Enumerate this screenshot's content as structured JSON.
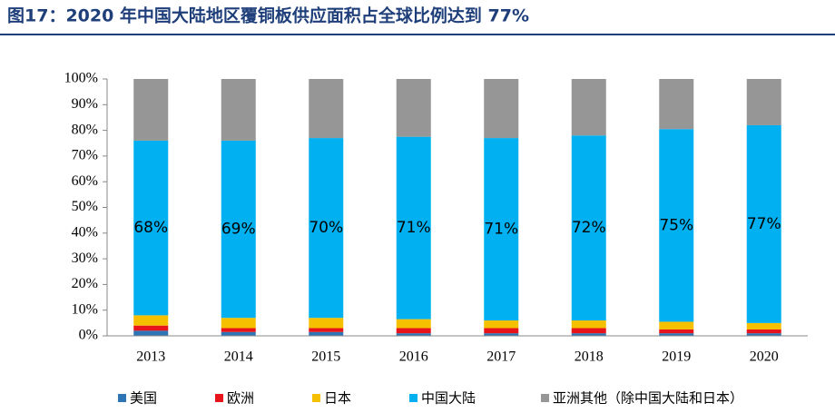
{
  "chart_data": {
    "type": "stacked_bar",
    "title": "图17：2020 年中国大陆地区覆铜板供应面积占全球比例达到 77%",
    "categories": [
      "2013",
      "2014",
      "2015",
      "2016",
      "2017",
      "2018",
      "2019",
      "2020"
    ],
    "series": [
      {
        "name": "美国",
        "color": "#2e75b6",
        "values": [
          2,
          1.5,
          1.5,
          1,
          1,
          1,
          1,
          1
        ]
      },
      {
        "name": "欧洲",
        "color": "#e8141b",
        "values": [
          2,
          1.5,
          1.5,
          2,
          2,
          2,
          1.5,
          1.5
        ]
      },
      {
        "name": "日本",
        "color": "#f5c000",
        "values": [
          4,
          4,
          4,
          3.5,
          3,
          3,
          3,
          2.5
        ]
      },
      {
        "name": "中国大陆",
        "color": "#00b0f0",
        "values": [
          68,
          69,
          70,
          71,
          71,
          72,
          75,
          77
        ],
        "value_labels": [
          "68%",
          "69%",
          "70%",
          "71%",
          "71%",
          "72%",
          "75%",
          "77%"
        ]
      },
      {
        "name": "亚洲其他（除中国大陆和日本）",
        "color": "#969696",
        "values": [
          24,
          24,
          23,
          22.5,
          23,
          22,
          19.5,
          18
        ]
      }
    ],
    "ylim": [
      0,
      100
    ],
    "yticks": [
      {
        "value": 0,
        "label": "0%"
      },
      {
        "value": 10,
        "label": "10%"
      },
      {
        "value": 20,
        "label": "20%"
      },
      {
        "value": 30,
        "label": "30%"
      },
      {
        "value": 40,
        "label": "40%"
      },
      {
        "value": 50,
        "label": "50%"
      },
      {
        "value": 60,
        "label": "60%"
      },
      {
        "value": 70,
        "label": "70%"
      },
      {
        "value": 80,
        "label": "80%"
      },
      {
        "value": 90,
        "label": "90%"
      },
      {
        "value": 100,
        "label": "100%"
      }
    ],
    "grid": false,
    "legend": "bottom"
  }
}
